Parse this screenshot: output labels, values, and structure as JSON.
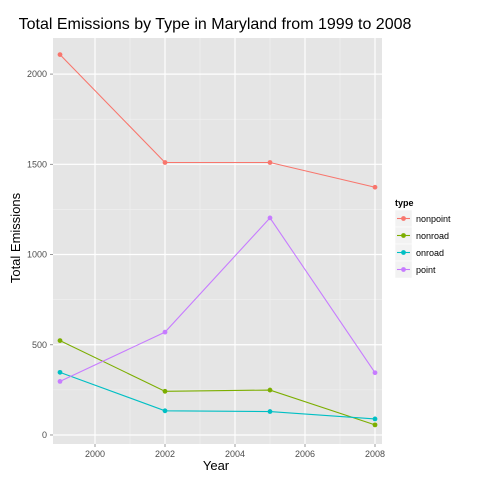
{
  "chart_data": {
    "type": "line",
    "title": "Total Emissions by Type in Maryland from 1999 to 2008",
    "xlabel": "Year",
    "ylabel": "Total Emissions",
    "x": [
      1999,
      2002,
      2005,
      2008
    ],
    "xlim": [
      1998.8,
      2008.2
    ],
    "ylim": [
      -50,
      2200
    ],
    "x_ticks": [
      2000,
      2002,
      2004,
      2006,
      2008
    ],
    "y_ticks": [
      0,
      500,
      1000,
      1500,
      2000
    ],
    "grid": true,
    "legend_title": "type",
    "legend_placement": "right",
    "series": [
      {
        "name": "nonpoint",
        "color": "#F8766D",
        "values": [
          2108,
          1510,
          1510,
          1373
        ]
      },
      {
        "name": "nonroad",
        "color": "#7CAE00",
        "values": [
          523,
          242,
          249,
          56
        ]
      },
      {
        "name": "onroad",
        "color": "#00BFC4",
        "values": [
          347,
          134,
          130,
          89
        ]
      },
      {
        "name": "point",
        "color": "#C77CFF",
        "values": [
          297,
          570,
          1203,
          345
        ]
      }
    ]
  }
}
